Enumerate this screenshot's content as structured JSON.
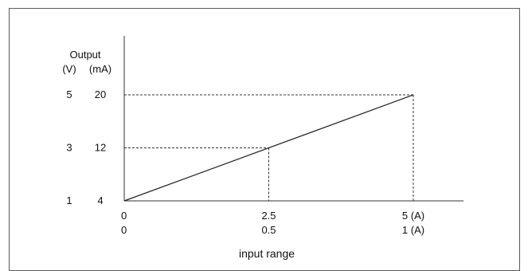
{
  "chart_data": {
    "type": "line",
    "xlabel": "input range",
    "ylabel": "Output",
    "y_units": [
      "(V)",
      "(mA)"
    ],
    "x_ticks": [
      {
        "x": 0,
        "label_primary": "0",
        "label_secondary": "0"
      },
      {
        "x": 2.5,
        "label_primary": "2.5",
        "label_secondary": "0.5"
      },
      {
        "x": 5,
        "label_primary": "5 (A)",
        "label_secondary": "1 (A)"
      }
    ],
    "y_ticks": [
      {
        "y": 1,
        "label_volts": "1",
        "label_ma": "4"
      },
      {
        "y": 3,
        "label_volts": "3",
        "label_ma": "12"
      },
      {
        "y": 5,
        "label_volts": "5",
        "label_ma": "20"
      }
    ],
    "xlim": [
      0,
      5
    ],
    "ylim": [
      1,
      6
    ],
    "series": [
      {
        "x": [
          0,
          5
        ],
        "values": [
          1,
          5
        ]
      }
    ],
    "guide_points": [
      {
        "x": 2.5,
        "y": 3
      },
      {
        "x": 5,
        "y": 5
      }
    ],
    "grid": false,
    "line_color": "#222222"
  }
}
